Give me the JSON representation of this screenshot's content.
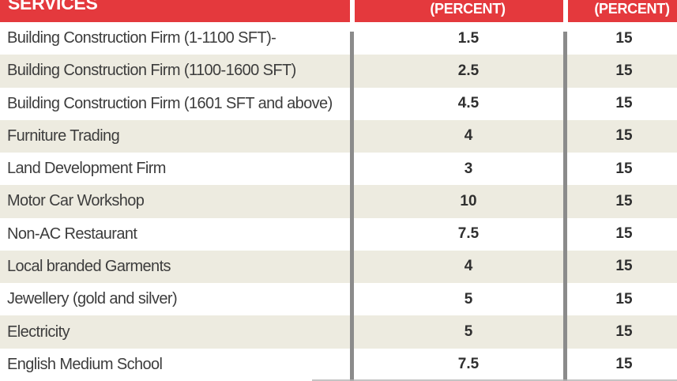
{
  "table": {
    "header": {
      "services_label": "SERVICES",
      "col1_label": "(PERCENT)",
      "col2_label": "(PERCENT)"
    },
    "rows": [
      {
        "service": "Building Construction Firm (1-1100 SFT)-",
        "col1": "1.5",
        "col2": "15"
      },
      {
        "service": "Building Construction Firm (1100-1600 SFT)",
        "col1": "2.5",
        "col2": "15"
      },
      {
        "service": "Building Construction Firm (1601 SFT and above)",
        "col1": "4.5",
        "col2": "15"
      },
      {
        "service": "Furniture Trading",
        "col1": "4",
        "col2": "15"
      },
      {
        "service": "Land Development Firm",
        "col1": "3",
        "col2": "15"
      },
      {
        "service": "Motor Car Workshop",
        "col1": "10",
        "col2": "15"
      },
      {
        "service": "Non-AC Restaurant",
        "col1": "7.5",
        "col2": "15"
      },
      {
        "service": "Local branded Garments",
        "col1": "4",
        "col2": "15"
      },
      {
        "service": "Jewellery (gold and silver)",
        "col1": "5",
        "col2": "15"
      },
      {
        "service": "Electricity",
        "col1": "5",
        "col2": "15"
      },
      {
        "service": "English Medium School",
        "col1": "7.5",
        "col2": "15"
      }
    ]
  },
  "colors": {
    "header_red": "#e4393d",
    "header_text": "#ffffff",
    "row_alt_beige": "#edebe0",
    "row_white": "#ffffff",
    "divider_gray": "#8b8b8b",
    "service_text": "#3d3d3d",
    "value_text": "#2f2f2f"
  },
  "chart_data": {
    "type": "table",
    "title": "SERVICES",
    "columns": [
      "SERVICES",
      "(PERCENT)",
      "(PERCENT)"
    ],
    "rows": [
      [
        "Building Construction Firm (1-1100 SFT)-",
        1.5,
        15
      ],
      [
        "Building Construction Firm (1100-1600 SFT)",
        2.5,
        15
      ],
      [
        "Building Construction Firm (1601 SFT and above)",
        4.5,
        15
      ],
      [
        "Furniture Trading",
        4,
        15
      ],
      [
        "Land Development Firm",
        3,
        15
      ],
      [
        "Motor Car Workshop",
        10,
        15
      ],
      [
        "Non-AC Restaurant",
        7.5,
        15
      ],
      [
        "Local branded Garments",
        4,
        15
      ],
      [
        "Jewellery (gold and silver)",
        5,
        15
      ],
      [
        "Electricity",
        5,
        15
      ],
      [
        "English Medium School",
        7.5,
        15
      ]
    ],
    "layout_hints": {
      "header_background": "#e4393d",
      "alternating_row_colors": [
        "#ffffff",
        "#edebe0"
      ],
      "column_dividers": "gray vertical bars",
      "cropped_edges": [
        "top of header text cut off",
        "right column label partially cut"
      ]
    }
  }
}
